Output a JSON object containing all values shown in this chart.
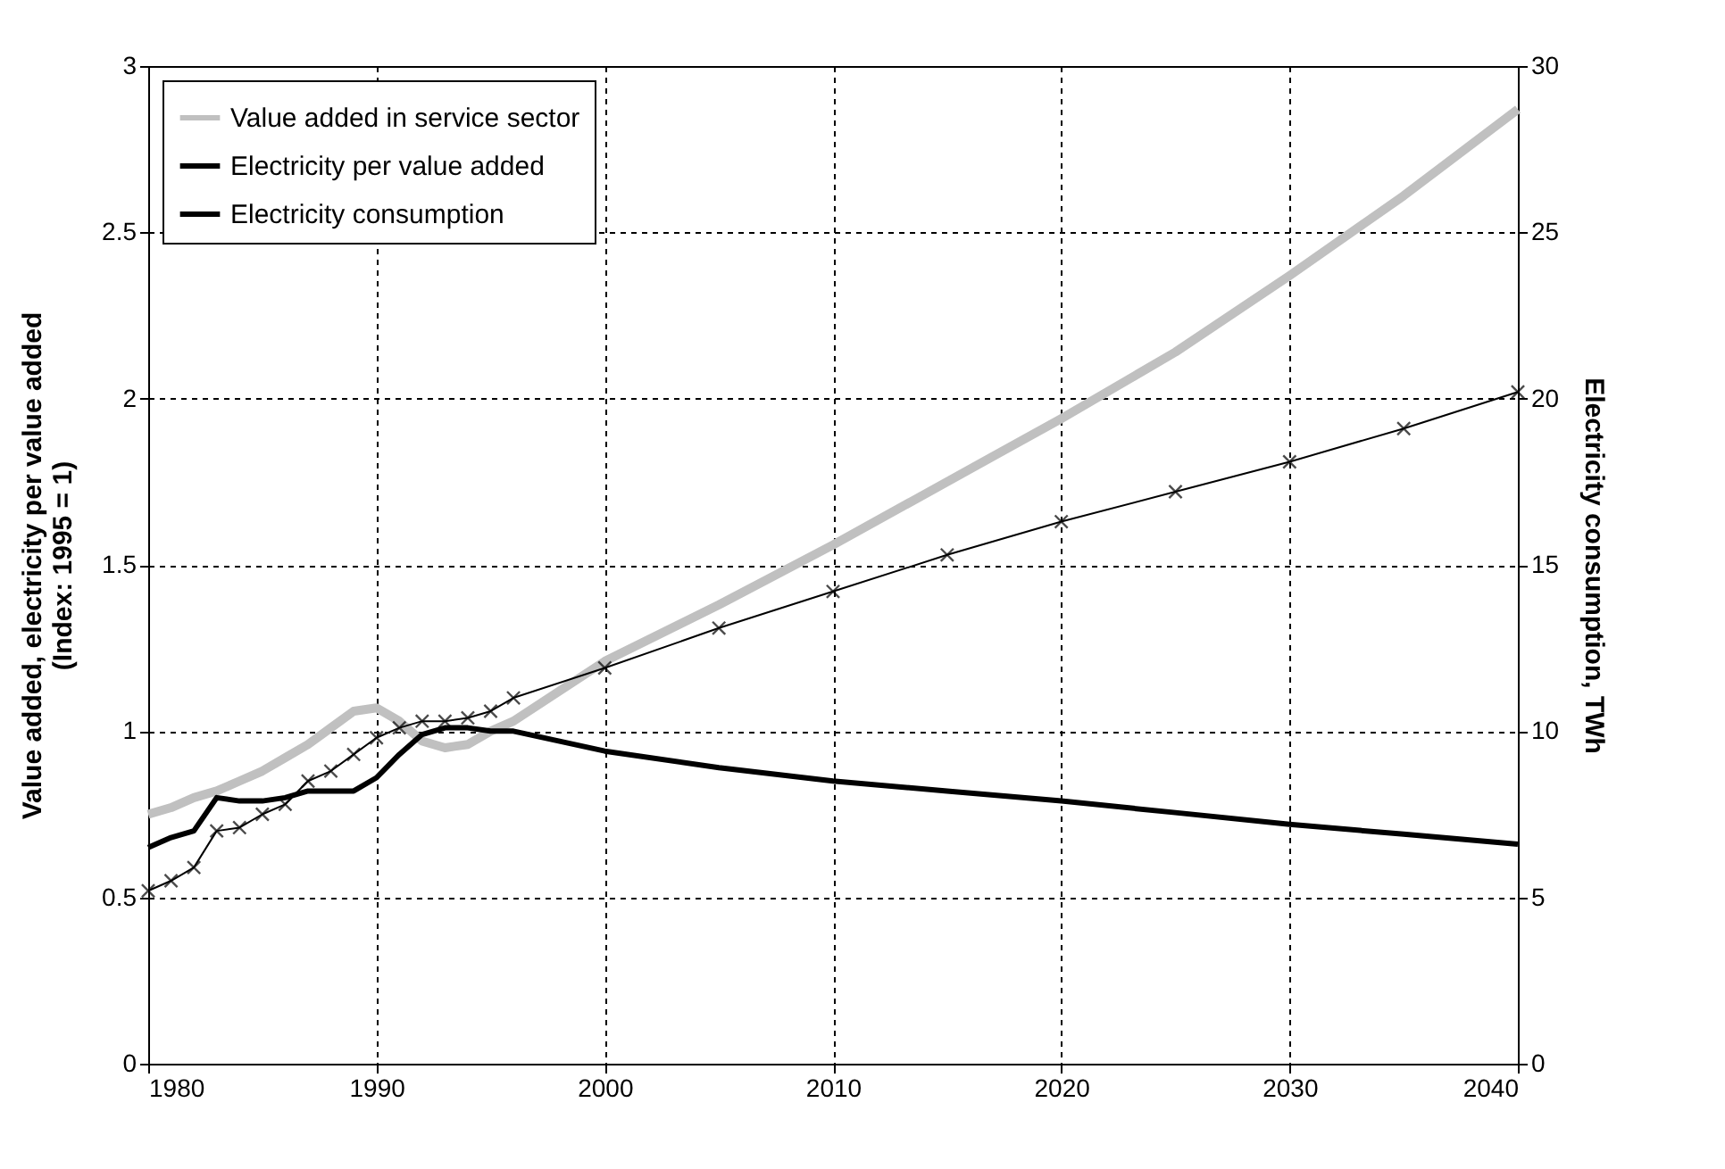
{
  "chart_data": {
    "type": "line",
    "ylabel": "Value added, electricity per value added\n(Index: 1995 = 1)",
    "y2label": "Electricity consumption, TWh",
    "x": [
      1980,
      1981,
      1982,
      1983,
      1984,
      1985,
      1986,
      1987,
      1988,
      1989,
      1990,
      1991,
      1992,
      1993,
      1994,
      1995,
      1996,
      2000,
      2005,
      2010,
      2015,
      2020,
      2025,
      2030,
      2035,
      2040
    ],
    "series": [
      {
        "name": "Value added in service sector",
        "color": "#c0c0c0",
        "values": [
          0.75,
          0.77,
          0.8,
          0.82,
          0.85,
          0.88,
          0.92,
          0.96,
          1.01,
          1.06,
          1.07,
          1.03,
          0.97,
          0.95,
          0.96,
          1.0,
          1.03,
          1.21,
          1.38,
          1.56,
          1.75,
          1.94,
          2.14,
          2.37,
          2.61,
          2.87
        ]
      },
      {
        "name": "Electricity per value added",
        "color": "#000000",
        "values": [
          0.65,
          0.68,
          0.7,
          0.8,
          0.79,
          0.79,
          0.8,
          0.82,
          0.82,
          0.82,
          0.86,
          0.93,
          0.99,
          1.01,
          1.01,
          1.0,
          1.0,
          0.94,
          0.89,
          0.85,
          0.82,
          0.79,
          0.755,
          0.72,
          0.69,
          0.66
        ]
      },
      {
        "name": "Electricity consumption",
        "color": "#000000",
        "axis": "y2",
        "marker": "cross",
        "values": [
          5.2,
          5.5,
          5.9,
          7.0,
          7.1,
          7.5,
          7.8,
          8.5,
          8.8,
          9.3,
          9.8,
          10.1,
          10.3,
          10.3,
          10.4,
          10.6,
          11.0,
          11.9,
          13.1,
          14.2,
          15.3,
          16.3,
          17.2,
          18.1,
          19.1,
          20.2
        ]
      }
    ],
    "xlim": [
      1980,
      2040
    ],
    "xticks": [
      1980,
      1990,
      2000,
      2010,
      2020,
      2030,
      2040
    ],
    "ylim": [
      0,
      3
    ],
    "yticks": [
      0,
      0.5,
      1,
      1.5,
      2,
      2.5,
      3
    ],
    "y2lim": [
      0,
      30
    ],
    "y2ticks": [
      0,
      5,
      10,
      15,
      20,
      25,
      30
    ],
    "grid": true,
    "legend": "top left"
  }
}
